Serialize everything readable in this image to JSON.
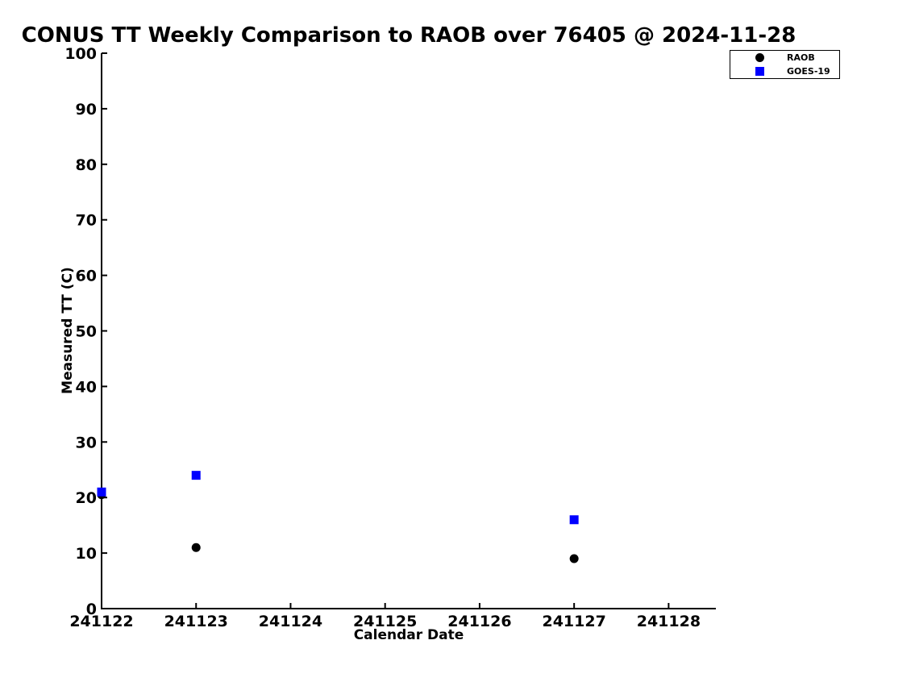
{
  "figure": {
    "background": "#ffffff",
    "text_color": "#000000"
  },
  "chart_data": {
    "type": "scatter",
    "title": "CONUS TT Weekly Comparison to RAOB over 76405 @ 2024-11-28",
    "xlabel": "Calendar Date",
    "ylabel": "Measured TT (C)",
    "xlim": [
      241122,
      241128.5
    ],
    "ylim": [
      0,
      100
    ],
    "xticks": [
      241122,
      241123,
      241124,
      241125,
      241126,
      241127,
      241128
    ],
    "yticks": [
      0,
      10,
      20,
      30,
      40,
      50,
      60,
      70,
      80,
      90,
      100
    ],
    "grid": false,
    "legend_position": "top-right",
    "series": [
      {
        "name": "RAOB",
        "marker": "circle",
        "color": "#000000",
        "points": [
          {
            "x": 241122,
            "y": 20.5
          },
          {
            "x": 241123,
            "y": 11
          },
          {
            "x": 241127,
            "y": 9
          }
        ]
      },
      {
        "name": "GOES-19",
        "marker": "square",
        "color": "#0000ff",
        "points": [
          {
            "x": 241122,
            "y": 21
          },
          {
            "x": 241123,
            "y": 24
          },
          {
            "x": 241127,
            "y": 16
          }
        ]
      }
    ]
  }
}
